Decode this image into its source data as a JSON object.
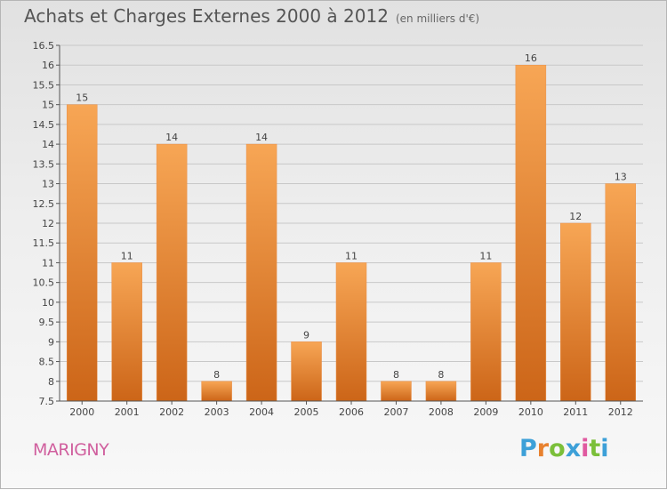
{
  "header": {
    "title": "Achats et Charges Externes 2000 à 2012",
    "units": "(en milliers d'€)"
  },
  "footer": {
    "commune": "MARIGNY",
    "logo_text": "Proxiti",
    "logo_colors": [
      "#3da0d8",
      "#e8812e",
      "#7bbf3a",
      "#3da0d8",
      "#e05aa0",
      "#7bbf3a",
      "#3da0d8"
    ]
  },
  "colors": {
    "bar_top": "#f7a655",
    "bar_bottom": "#cc6518",
    "axis": "#555555",
    "grid": "#c8c8c8"
  },
  "chart_data": {
    "type": "bar",
    "title": "Achats et Charges Externes 2000 à 2012",
    "xlabel": "",
    "ylabel": "",
    "categories": [
      "2000",
      "2001",
      "2002",
      "2003",
      "2004",
      "2005",
      "2006",
      "2007",
      "2008",
      "2009",
      "2010",
      "2011",
      "2012"
    ],
    "values": [
      15,
      11,
      14,
      8,
      14,
      9,
      11,
      8,
      8,
      11,
      16,
      12,
      13
    ],
    "data_labels": [
      "15",
      "11",
      "14",
      "8",
      "14",
      "9",
      "11",
      "8",
      "8",
      "11",
      "16",
      "12",
      "13"
    ],
    "ylim": [
      7.5,
      16.5
    ],
    "yticks": [
      7.5,
      8,
      8.5,
      9,
      9.5,
      10,
      10.5,
      11,
      11.5,
      12,
      12.5,
      13,
      13.5,
      14,
      14.5,
      15,
      15.5,
      16,
      16.5
    ],
    "ytick_labels": [
      "7.5",
      "8",
      "8.5",
      "9",
      "9.5",
      "10",
      "10.5",
      "11",
      "11.5",
      "12",
      "12.5",
      "13",
      "13.5",
      "14",
      "14.5",
      "15",
      "15.5",
      "16",
      "16.5"
    ],
    "grid": true,
    "legend": "none"
  }
}
